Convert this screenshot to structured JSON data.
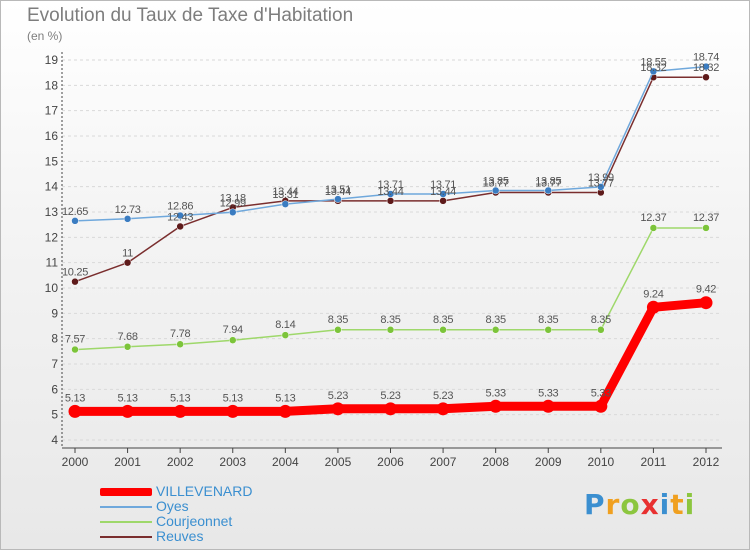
{
  "header": {
    "title": "Evolution du Taux de Taxe d'Habitation",
    "subtitle": "(en %)"
  },
  "brand": {
    "logo_text": "Proxiti"
  },
  "chart_data": {
    "type": "line",
    "title": "Evolution du Taux de Taxe d'Habitation",
    "subtitle": "(en %)",
    "xlabel": "",
    "ylabel": "",
    "categories": [
      "2000",
      "2001",
      "2002",
      "2003",
      "2004",
      "2005",
      "2006",
      "2007",
      "2008",
      "2009",
      "2010",
      "2011",
      "2012"
    ],
    "ylim": [
      4,
      19
    ],
    "yticks": [
      4,
      5,
      6,
      7,
      8,
      9,
      10,
      11,
      12,
      13,
      14,
      15,
      16,
      17,
      18,
      19
    ],
    "legend_position": "bottom-left",
    "series": [
      {
        "name": "VILLEVENARD",
        "color": "#ff0000",
        "values": [
          5.13,
          5.13,
          5.13,
          5.13,
          5.13,
          5.23,
          5.23,
          5.23,
          5.33,
          5.33,
          5.33,
          9.24,
          9.42
        ],
        "labels": [
          "5.13",
          "5.13",
          "5.13",
          "5.13",
          "5.13",
          "5.23",
          "5.23",
          "5.23",
          "5.33",
          "5.33",
          "5.33",
          "9.24",
          "9.42"
        ]
      },
      {
        "name": "Oyes",
        "color": "#6fa8dc",
        "marker_color": "#3a7cc1",
        "values": [
          12.65,
          12.73,
          12.86,
          12.99,
          13.31,
          13.51,
          13.71,
          13.71,
          13.85,
          13.85,
          13.99,
          18.55,
          18.74
        ],
        "labels": [
          "12.65",
          "12.73",
          "12.86",
          "12.99",
          "13.31",
          "13.51",
          "13.71",
          "13.71",
          "13.85",
          "13.85",
          "13.99",
          "18.55",
          "18.74"
        ]
      },
      {
        "name": "Courjeonnet",
        "color": "#9ed86a",
        "marker_color": "#7cc43a",
        "values": [
          7.57,
          7.68,
          7.78,
          7.94,
          8.14,
          8.35,
          8.35,
          8.35,
          8.35,
          8.35,
          8.35,
          12.37,
          12.37
        ],
        "labels": [
          "7.57",
          "7.68",
          "7.78",
          "7.94",
          "8.14",
          "8.35",
          "8.35",
          "8.35",
          "8.35",
          "8.35",
          "8.35",
          "12.37",
          "12.37"
        ]
      },
      {
        "name": "Reuves",
        "color": "#7a2e2e",
        "marker_color": "#5e1a1a",
        "values": [
          10.25,
          11,
          12.43,
          13.18,
          13.44,
          13.44,
          13.44,
          13.44,
          13.77,
          13.77,
          13.77,
          18.32,
          18.32
        ],
        "labels": [
          "10.25",
          "11",
          "12.43",
          "13.18",
          "13.44",
          "13.44",
          "13.44",
          "13.44",
          "13.77",
          "13.77",
          "13.77",
          "18.32",
          "18.32"
        ]
      }
    ]
  }
}
